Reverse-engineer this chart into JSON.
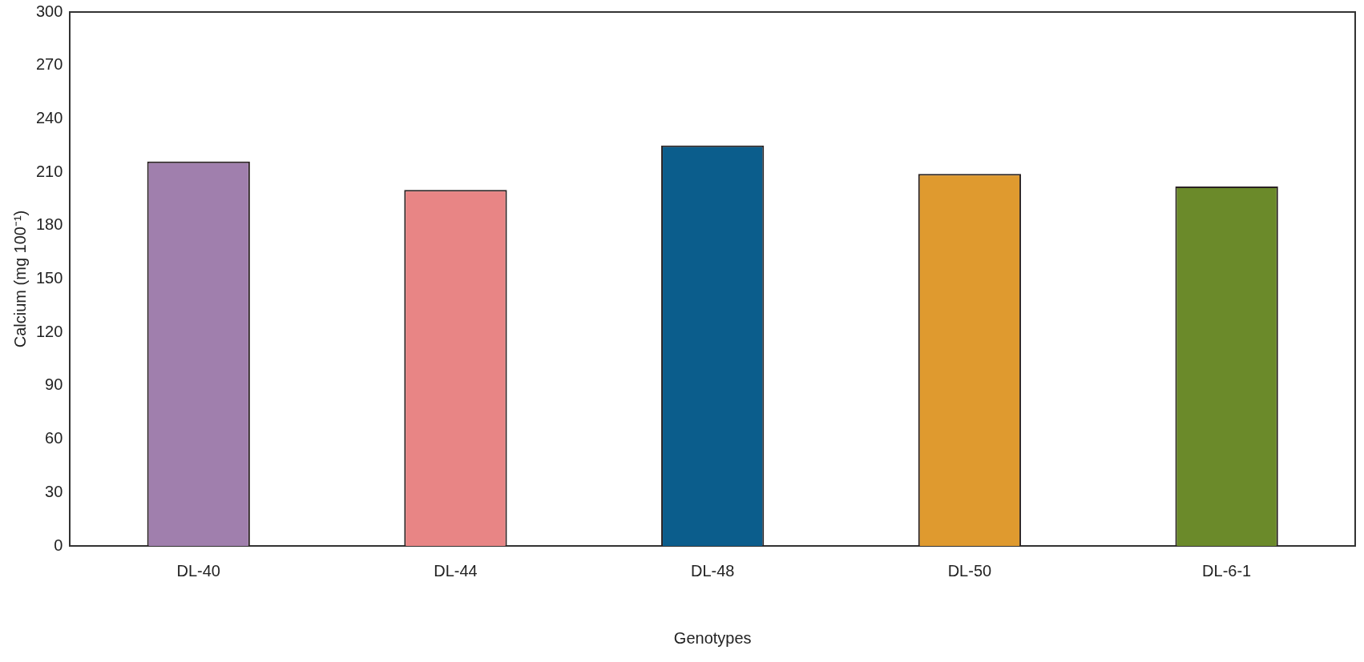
{
  "chart_data": {
    "type": "bar",
    "xlabel": "Genotypes",
    "ylabel": "Calcium (mg 100⁻¹)",
    "categories": [
      "DL-40",
      "DL-44",
      "DL-48",
      "DL-50",
      "DL-6-1"
    ],
    "values": [
      216,
      200,
      225,
      209,
      202
    ],
    "colors": [
      "#a07fad",
      "#e88585",
      "#0b5d8c",
      "#df9a2f",
      "#6b8a2a"
    ],
    "ylim": [
      0,
      300
    ],
    "yticks": [
      0,
      30,
      60,
      90,
      120,
      150,
      180,
      210,
      240,
      270,
      300
    ],
    "grid": false,
    "legend": false
  }
}
